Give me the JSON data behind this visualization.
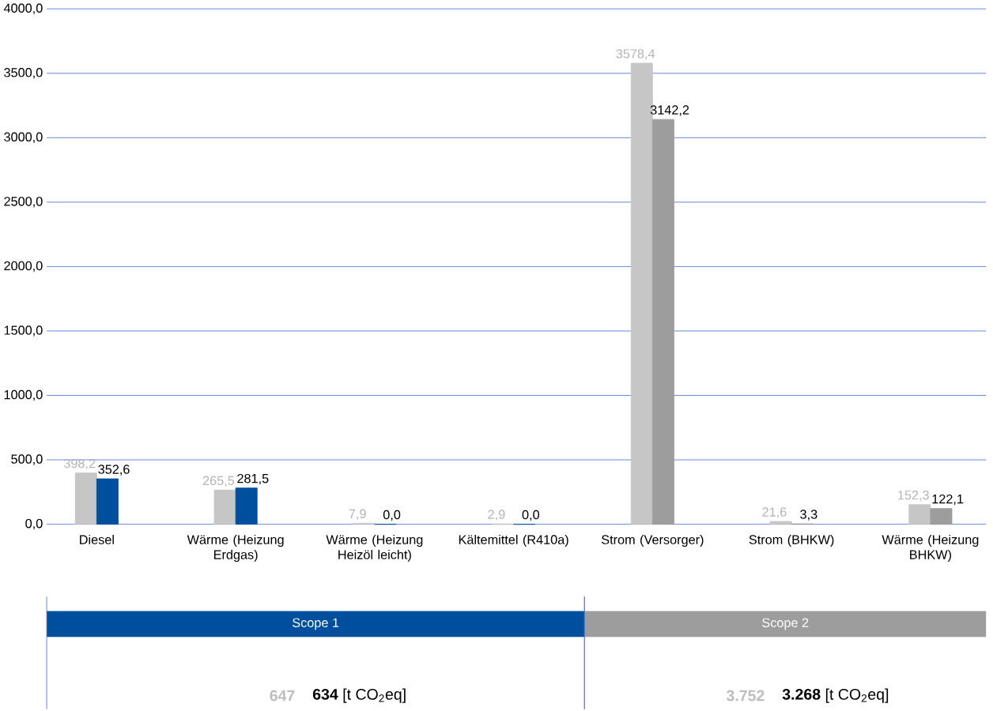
{
  "chart_data": {
    "type": "bar",
    "categories": [
      "Diesel",
      "Wärme (Heizung Erdgas)",
      "Wärme (Heizung Heizöl leicht)",
      "Kältemittel (R410a)",
      "Strom (Versorger)",
      "Strom (BHKW)",
      "Wärme (Heizung BHKW)"
    ],
    "series": [
      {
        "colors": [
          "#c6c6c6",
          "#c6c6c6",
          "#c6c6c6",
          "#c6c6c6",
          "#c6c6c6",
          "#c6c6c6",
          "#c6c6c6"
        ],
        "values": [
          398.2,
          265.5,
          7.9,
          2.9,
          3578.4,
          21.6,
          152.3
        ],
        "value_labels": [
          "398,2",
          "265,5",
          "7,9",
          "2,9",
          "3578,4",
          "21,6",
          "152,3"
        ]
      },
      {
        "colors": [
          "#004f9f",
          "#004f9f",
          "#004f9f",
          "#004f9f",
          "#9d9d9d",
          "#9d9d9d",
          "#9d9d9d"
        ],
        "values": [
          352.6,
          281.5,
          0.0,
          0.0,
          3142.2,
          3.3,
          122.1
        ],
        "value_labels": [
          "352,6",
          "281,5",
          "0,0",
          "0,0",
          "3142,2",
          "3,3",
          "122,1"
        ]
      }
    ],
    "ylim": [
      0,
      4000
    ],
    "yticks": [
      {
        "value": 0,
        "label": "0,0"
      },
      {
        "value": 500,
        "label": "500,0"
      },
      {
        "value": 1000,
        "label": "1000,0"
      },
      {
        "value": 1500,
        "label": "1500,0"
      },
      {
        "value": 2000,
        "label": "2000,0"
      },
      {
        "value": 2500,
        "label": "2500,0"
      },
      {
        "value": 3000,
        "label": "3000,0"
      },
      {
        "value": 3500,
        "label": "3500,0"
      },
      {
        "value": 4000,
        "label": "4000,0"
      }
    ],
    "grid": "y",
    "annotations": [
      "Scope 1",
      "Scope 2",
      "647",
      "**634** [t CO$_{2}$eq]",
      "3.752",
      "**3.268** [t CO$_{2}$eq]"
    ]
  }
}
